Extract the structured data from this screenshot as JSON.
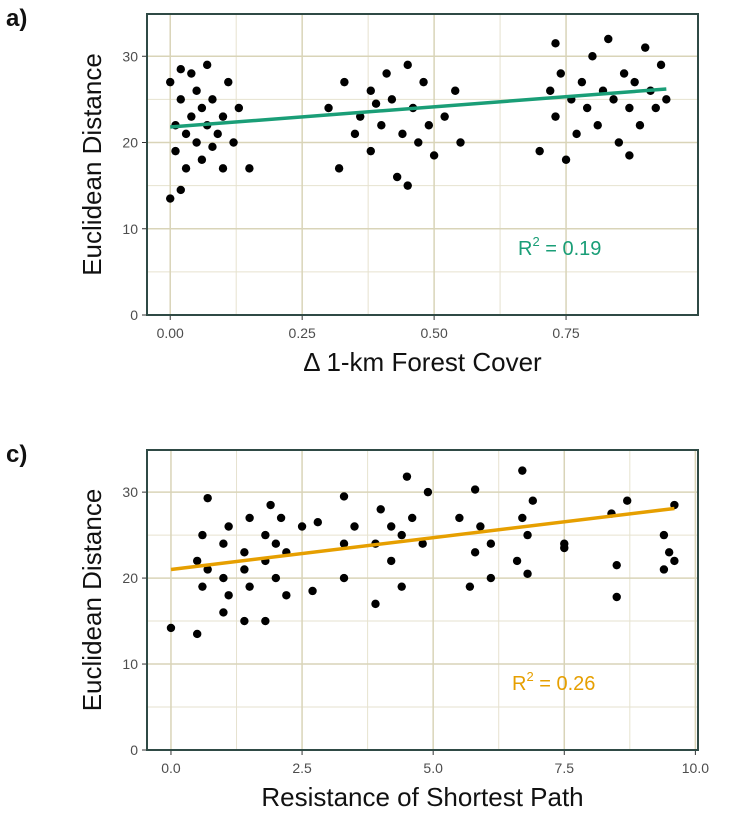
{
  "chart_data": [
    {
      "type": "scatter",
      "panel_label": "a)",
      "xlabel": "Δ 1-km Forest Cover",
      "ylabel": "Euclidean Distance",
      "annotation": [
        "R",
        "2",
        " = 0.19"
      ],
      "annotation_color": "#1a9e77",
      "xlim": [
        -0.044,
        1.0
      ],
      "ylim": [
        0,
        34.9
      ],
      "xticks": [
        {
          "value": 0,
          "label": "0.00"
        },
        0.25,
        {
          "value": 0.5,
          "label": "0.50"
        },
        0.75
      ],
      "yticks": [
        0,
        10,
        20,
        30
      ],
      "grid": true,
      "color": "#000000",
      "x": [
        0.0,
        0.01,
        0.01,
        0.02,
        0.02,
        0.03,
        0.03,
        0.04,
        0.04,
        0.05,
        0.05,
        0.06,
        0.06,
        0.07,
        0.07,
        0.08,
        0.08,
        0.09,
        0.1,
        0.1,
        0.11,
        0.12,
        0.13,
        0.15,
        0.0,
        0.02,
        0.3,
        0.32,
        0.33,
        0.35,
        0.36,
        0.38,
        0.38,
        0.4,
        0.41,
        0.42,
        0.43,
        0.44,
        0.45,
        0.46,
        0.47,
        0.48,
        0.49,
        0.5,
        0.52,
        0.54,
        0.55,
        0.45,
        0.39,
        0.7,
        0.72,
        0.73,
        0.74,
        0.75,
        0.76,
        0.77,
        0.78,
        0.79,
        0.8,
        0.81,
        0.82,
        0.83,
        0.84,
        0.85,
        0.86,
        0.87,
        0.88,
        0.89,
        0.9,
        0.91,
        0.92,
        0.93,
        0.94,
        0.73,
        0.87
      ],
      "values": [
        27,
        22,
        19,
        25,
        14.5,
        21,
        17,
        23,
        28,
        20,
        26,
        18,
        24,
        22,
        29,
        19.5,
        25,
        21,
        23,
        17,
        27,
        20,
        24,
        17,
        13.5,
        28.5,
        24,
        17,
        27,
        21,
        23,
        19,
        26,
        22,
        28,
        25,
        16,
        21,
        29,
        24,
        20,
        27,
        22,
        18.5,
        23,
        26,
        20,
        15,
        24.5,
        19,
        26,
        23,
        28,
        18,
        25,
        21,
        27,
        24,
        30,
        22,
        26,
        32,
        25,
        20,
        28,
        24,
        27,
        22,
        31,
        26,
        24,
        29,
        25,
        31.5,
        18.5
      ],
      "trend": {
        "x": [
          0,
          0.94
        ],
        "y": [
          21.8,
          26.2
        ],
        "color": "#1a9e77"
      }
    },
    {
      "type": "scatter",
      "panel_label": "c)",
      "xlabel": "Resistance of Shortest Path",
      "ylabel": "Euclidean Distance",
      "annotation": [
        "R",
        "2",
        " = 0.26"
      ],
      "annotation_color": "#e69f00",
      "xlim": [
        -0.457,
        10.05
      ],
      "ylim": [
        0,
        34.9
      ],
      "xticks": [
        {
          "value": 0,
          "label": "0.0"
        },
        2.5,
        {
          "value": 5,
          "label": "5.0"
        },
        7.5,
        {
          "value": 10,
          "label": "10.0"
        }
      ],
      "yticks": [
        0,
        10,
        20,
        30
      ],
      "grid": true,
      "color": "#000000",
      "x": [
        0.0,
        0.5,
        0.5,
        0.6,
        0.6,
        0.7,
        0.7,
        1.0,
        1.0,
        1.0,
        1.1,
        1.1,
        1.4,
        1.4,
        1.4,
        1.5,
        1.5,
        1.8,
        1.8,
        1.8,
        1.9,
        2.0,
        2.0,
        2.1,
        2.2,
        2.2,
        2.5,
        2.7,
        2.8,
        3.3,
        3.3,
        3.3,
        3.5,
        3.9,
        3.9,
        4.0,
        4.2,
        4.2,
        4.4,
        4.4,
        4.5,
        4.6,
        4.8,
        4.9,
        5.5,
        5.7,
        5.8,
        5.8,
        5.9,
        6.1,
        6.1,
        6.6,
        6.7,
        6.7,
        6.8,
        6.8,
        6.9,
        7.5,
        7.5,
        8.4,
        8.5,
        8.5,
        8.7,
        9.4,
        9.4,
        9.5,
        9.6,
        9.6
      ],
      "values": [
        14.2,
        13.5,
        22,
        19,
        25,
        29.3,
        21,
        16,
        20,
        24,
        26,
        18,
        15,
        21,
        23,
        27,
        19,
        15,
        22,
        25,
        28.5,
        20,
        24,
        27,
        18,
        23,
        26,
        18.5,
        26.5,
        29.5,
        20,
        24,
        26,
        17,
        24,
        28,
        22,
        26,
        19,
        25,
        31.8,
        27,
        24,
        30,
        27,
        19,
        23,
        30.3,
        26,
        24,
        20,
        22,
        27,
        32.5,
        25,
        20.5,
        29,
        24,
        23.5,
        27.5,
        17.8,
        21.5,
        29,
        25,
        21,
        23,
        28.5,
        22
      ],
      "trend": {
        "x": [
          0,
          9.6
        ],
        "y": [
          21,
          28.1
        ],
        "color": "#e69f00"
      }
    }
  ]
}
